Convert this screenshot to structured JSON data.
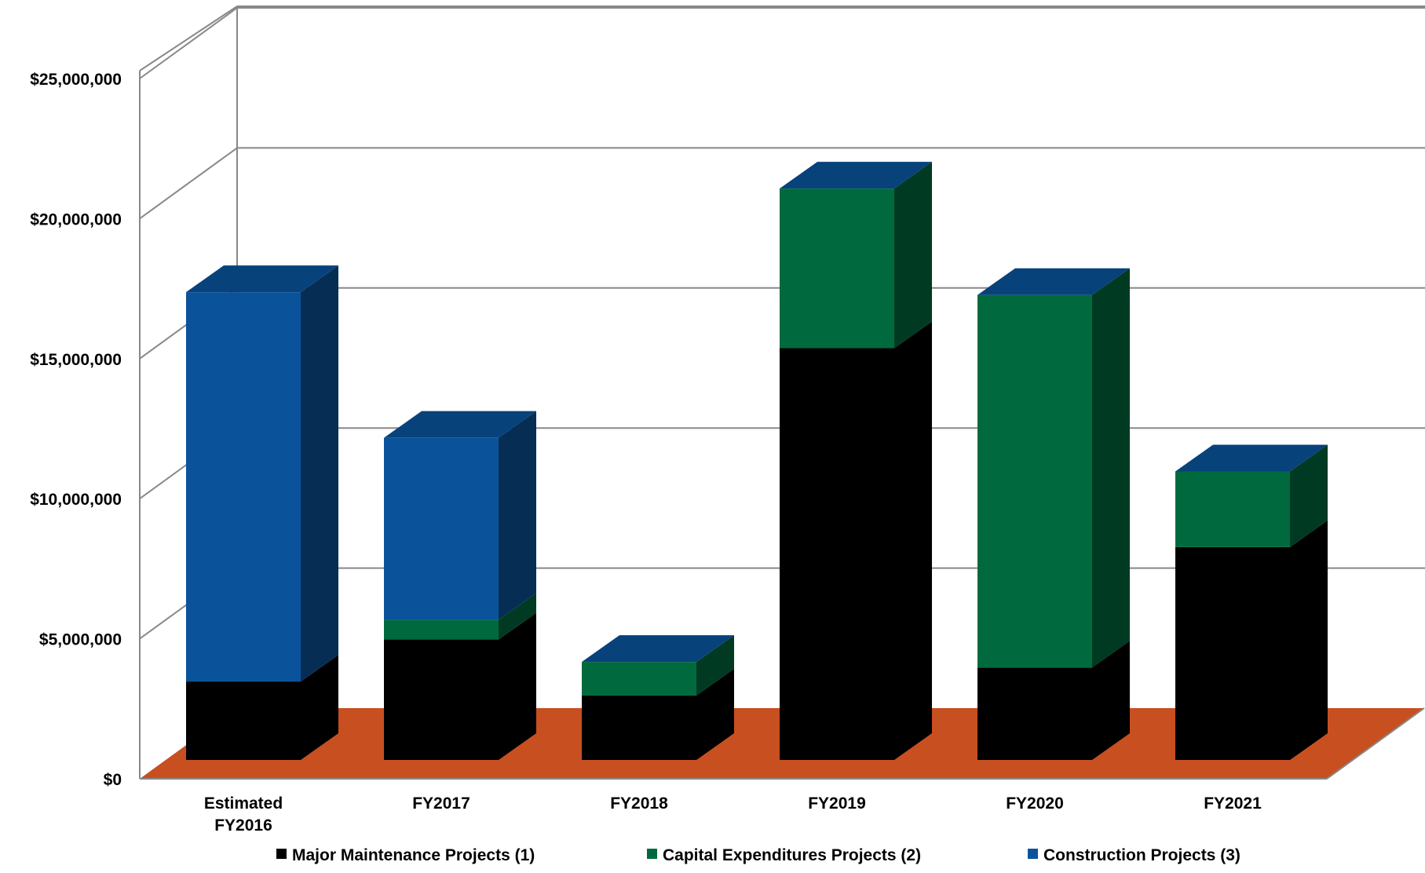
{
  "chart_data": {
    "type": "bar",
    "stacked": true,
    "three_d": true,
    "categories": [
      "Estimated FY2016",
      "FY2017",
      "FY2018",
      "FY2019",
      "FY2020",
      "FY2021"
    ],
    "series": [
      {
        "name": "Major Maintenance Projects (1)",
        "color": "#000000",
        "values": [
          2800000,
          4300000,
          2300000,
          14700000,
          3300000,
          7600000
        ]
      },
      {
        "name": "Capital Expenditures Projects (2)",
        "color": "#006a3e",
        "values": [
          0,
          700000,
          1200000,
          5700000,
          13300000,
          2700000
        ]
      },
      {
        "name": "Construction Projects (3)",
        "color": "#0a539a",
        "values": [
          13900000,
          6500000,
          0,
          0,
          0,
          0
        ]
      }
    ],
    "yticks": [
      "$0",
      "$5,000,000",
      "$10,000,000",
      "$15,000,000",
      "$20,000,000",
      "$25,000,000"
    ],
    "ylim": [
      0,
      25000000
    ],
    "grid": true,
    "floor_color": "#c84f20",
    "legend_position": "bottom",
    "title": "",
    "xlabel": "",
    "ylabel": ""
  }
}
